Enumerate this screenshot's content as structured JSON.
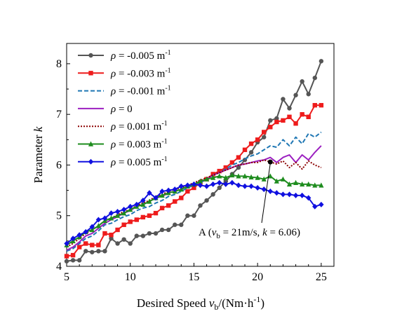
{
  "chart_data": {
    "type": "line",
    "xlabel_main": "Desired Speed ",
    "xlabel_var": "v",
    "xlabel_sub": "b",
    "xlabel_unit": "/(Nm·h",
    "xlabel_unit_sup": "-1",
    "xlabel_close": ")",
    "ylabel_main": "Parameter ",
    "ylabel_var": "k",
    "xlim": [
      5,
      26
    ],
    "ylim": [
      4,
      8.4
    ],
    "xticks": [
      5,
      10,
      15,
      20,
      25
    ],
    "yticks": [
      4,
      5,
      6,
      7,
      8
    ],
    "legend_position": "top-left",
    "x": [
      5,
      5.5,
      6,
      6.5,
      7,
      7.5,
      8,
      8.5,
      9,
      9.5,
      10,
      10.5,
      11,
      11.5,
      12,
      12.5,
      13,
      13.5,
      14,
      14.5,
      15,
      15.5,
      16,
      16.5,
      17,
      17.5,
      18,
      18.5,
      19,
      19.5,
      20,
      20.5,
      21,
      21.5,
      22,
      22.5,
      23,
      23.5,
      24,
      24.5,
      25
    ],
    "series": [
      {
        "rho_value": "-0.005",
        "unit": " m",
        "unit_sup": "-1",
        "color": "#555555",
        "style": "solid",
        "marker": "circle",
        "values": [
          4.1,
          4.12,
          4.12,
          4.3,
          4.28,
          4.3,
          4.3,
          4.55,
          4.45,
          4.53,
          4.45,
          4.6,
          4.6,
          4.65,
          4.65,
          4.72,
          4.72,
          4.82,
          4.82,
          5.0,
          5.0,
          5.2,
          5.3,
          5.42,
          5.55,
          5.68,
          5.82,
          5.95,
          6.1,
          6.25,
          6.45,
          6.55,
          6.88,
          6.92,
          7.3,
          7.12,
          7.38,
          7.65,
          7.4,
          7.72,
          8.05
        ]
      },
      {
        "rho_value": "-0.003",
        "unit": " m",
        "unit_sup": "-1",
        "color": "#ee1c1c",
        "style": "solid",
        "marker": "square",
        "values": [
          4.2,
          4.22,
          4.38,
          4.45,
          4.42,
          4.42,
          4.65,
          4.62,
          4.72,
          4.82,
          4.88,
          4.92,
          4.97,
          5.0,
          5.05,
          5.15,
          5.2,
          5.28,
          5.35,
          5.48,
          5.55,
          5.65,
          5.72,
          5.82,
          5.88,
          5.95,
          6.05,
          6.15,
          6.3,
          6.42,
          6.5,
          6.65,
          6.75,
          6.85,
          6.88,
          6.95,
          6.82,
          7.0,
          6.95,
          7.18,
          7.18
        ]
      },
      {
        "rho_value": "-0.001",
        "unit": " m",
        "unit_sup": "-1",
        "color": "#1f77b4",
        "style": "dashed",
        "marker": "none",
        "values": [
          4.3,
          4.35,
          4.45,
          4.55,
          4.6,
          4.7,
          4.82,
          4.85,
          4.92,
          4.98,
          5.02,
          5.1,
          5.15,
          5.18,
          5.25,
          5.3,
          5.38,
          5.42,
          5.48,
          5.55,
          5.6,
          5.65,
          5.72,
          5.8,
          5.85,
          5.92,
          6.0,
          6.05,
          6.12,
          6.18,
          6.22,
          6.3,
          6.38,
          6.35,
          6.5,
          6.38,
          6.55,
          6.42,
          6.62,
          6.55,
          6.65
        ]
      },
      {
        "rho_value": "0",
        "unit": "",
        "unit_sup": "",
        "color": "#9b1fc0",
        "style": "solid",
        "marker": "none",
        "values": [
          4.32,
          4.38,
          4.48,
          4.6,
          4.65,
          4.75,
          4.85,
          4.92,
          4.98,
          5.05,
          5.1,
          5.18,
          5.22,
          5.28,
          5.35,
          5.38,
          5.45,
          5.48,
          5.52,
          5.58,
          5.62,
          5.68,
          5.72,
          5.8,
          5.85,
          5.9,
          5.95,
          6.0,
          6.02,
          6.05,
          6.08,
          6.1,
          6.15,
          6.05,
          6.15,
          6.2,
          6.05,
          6.2,
          6.1,
          6.25,
          6.38
        ]
      },
      {
        "rho_value": "0.001",
        "unit": " m",
        "unit_sup": "-1",
        "color": "#8b0000",
        "style": "dotted",
        "marker": "none",
        "values": [
          4.38,
          4.45,
          4.55,
          4.65,
          4.72,
          4.8,
          4.9,
          4.95,
          5.02,
          5.08,
          5.12,
          5.2,
          5.25,
          5.3,
          5.38,
          5.42,
          5.48,
          5.52,
          5.55,
          5.6,
          5.65,
          5.7,
          5.75,
          5.8,
          5.85,
          5.9,
          5.95,
          6.0,
          6.02,
          6.05,
          6.05,
          6.1,
          6.06,
          6.02,
          6.08,
          5.95,
          6.05,
          5.92,
          6.08,
          6.0,
          5.95
        ]
      },
      {
        "rho_value": "0.003",
        "unit": " m",
        "unit_sup": "-1",
        "color": "#1e8c1e",
        "style": "solid",
        "marker": "triangle",
        "values": [
          4.42,
          4.5,
          4.58,
          4.68,
          4.72,
          4.8,
          4.9,
          4.95,
          5.0,
          5.05,
          5.12,
          5.18,
          5.22,
          5.28,
          5.35,
          5.4,
          5.45,
          5.48,
          5.52,
          5.58,
          5.62,
          5.68,
          5.72,
          5.75,
          5.78,
          5.75,
          5.8,
          5.78,
          5.78,
          5.76,
          5.75,
          5.72,
          5.78,
          5.68,
          5.72,
          5.62,
          5.65,
          5.62,
          5.62,
          5.6,
          5.6
        ]
      },
      {
        "rho_value": "0.005",
        "unit": " m",
        "unit_sup": "-1",
        "color": "#1010e0",
        "style": "solid",
        "marker": "diamond",
        "values": [
          4.45,
          4.55,
          4.62,
          4.68,
          4.78,
          4.92,
          4.95,
          5.05,
          5.08,
          5.12,
          5.18,
          5.22,
          5.3,
          5.45,
          5.35,
          5.48,
          5.5,
          5.52,
          5.58,
          5.6,
          5.62,
          5.6,
          5.58,
          5.62,
          5.65,
          5.62,
          5.65,
          5.6,
          5.58,
          5.58,
          5.55,
          5.52,
          5.48,
          5.45,
          5.42,
          5.42,
          5.4,
          5.4,
          5.35,
          5.18,
          5.22
        ]
      }
    ],
    "annotation": {
      "point": [
        21,
        6.06
      ],
      "label_prefix": "A (",
      "label_var": "v",
      "label_sub": "b",
      "label_mid": " = 21m/s, ",
      "label_k": "k",
      "label_end": " = 6.06)"
    }
  }
}
